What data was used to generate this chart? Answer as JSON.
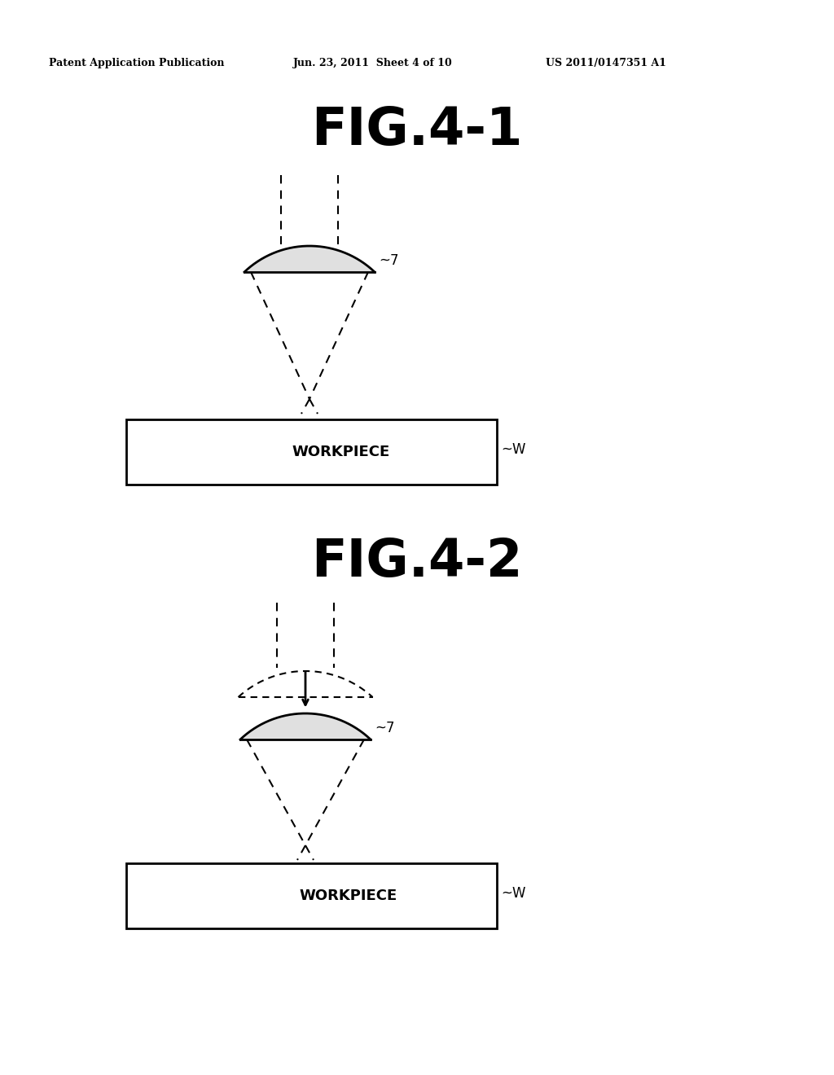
{
  "bg_color": "#ffffff",
  "header_left": "Patent Application Publication",
  "header_mid": "Jun. 23, 2011  Sheet 4 of 10",
  "header_right": "US 2011/0147351 A1",
  "fig1_title": "FIG.4-1",
  "fig2_title": "FIG.4-2",
  "label_7": "7",
  "label_W": "W",
  "workpiece_text": "WORKPIECE",
  "header_fontsize": 9,
  "title_fontsize": 46,
  "wp_fontsize": 13,
  "label_fontsize": 13
}
